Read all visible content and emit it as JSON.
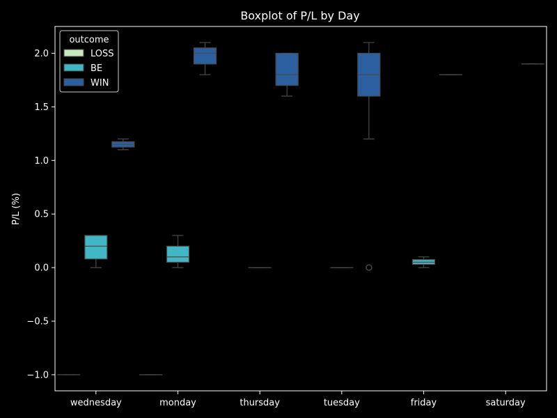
{
  "chart_data": {
    "type": "boxplot",
    "title": "Boxplot of P/L by Day",
    "xlabel": "",
    "ylabel": "P/L (%)",
    "ylim": [
      -1.15,
      2.25
    ],
    "yticks": [
      -1.0,
      -0.5,
      0.0,
      0.5,
      1.0,
      1.5,
      2.0
    ],
    "ytick_labels": [
      "−1.0",
      "−0.5",
      "0.0",
      "0.5",
      "1.0",
      "1.5",
      "2.0"
    ],
    "categories": [
      "wednesday",
      "monday",
      "thursday",
      "tuesday",
      "friday",
      "saturday"
    ],
    "legend": {
      "title": "outcome",
      "position": "top-left"
    },
    "series": [
      {
        "name": "LOSS",
        "color": "#c7e9c0",
        "boxes": [
          {
            "category": "wednesday",
            "min": -1.0,
            "q1": -1.0,
            "median": -1.0,
            "q3": -1.0,
            "max": -1.0,
            "outliers": []
          },
          {
            "category": "monday",
            "min": -1.0,
            "q1": -1.0,
            "median": -1.0,
            "q3": -1.0,
            "max": -1.0,
            "outliers": []
          }
        ]
      },
      {
        "name": "BE",
        "color": "#41b6c4",
        "boxes": [
          {
            "category": "wednesday",
            "min": 0.0,
            "q1": 0.08,
            "median": 0.2,
            "q3": 0.3,
            "max": 0.3,
            "outliers": []
          },
          {
            "category": "monday",
            "min": 0.0,
            "q1": 0.05,
            "median": 0.1,
            "q3": 0.2,
            "max": 0.3,
            "outliers": []
          },
          {
            "category": "thursday",
            "min": 0.0,
            "q1": 0.0,
            "median": 0.0,
            "q3": 0.0,
            "max": 0.0,
            "outliers": []
          },
          {
            "category": "tuesday",
            "min": 0.0,
            "q1": 0.0,
            "median": 0.0,
            "q3": 0.0,
            "max": 0.0,
            "outliers": [
              0.0
            ]
          },
          {
            "category": "friday",
            "min": 0.0,
            "q1": 0.03,
            "median": 0.05,
            "q3": 0.075,
            "max": 0.1,
            "outliers": []
          }
        ]
      },
      {
        "name": "WIN",
        "color": "#2c5fa0",
        "boxes": [
          {
            "category": "wednesday",
            "min": 1.1,
            "q1": 1.125,
            "median": 1.15,
            "q3": 1.175,
            "max": 1.2,
            "outliers": []
          },
          {
            "category": "monday",
            "min": 1.8,
            "q1": 1.9,
            "median": 2.0,
            "q3": 2.05,
            "max": 2.1,
            "outliers": []
          },
          {
            "category": "thursday",
            "min": 1.6,
            "q1": 1.7,
            "median": 1.8,
            "q3": 2.0,
            "max": 2.0,
            "outliers": []
          },
          {
            "category": "tuesday",
            "min": 1.2,
            "q1": 1.6,
            "median": 1.8,
            "q3": 2.0,
            "max": 2.1,
            "outliers": []
          },
          {
            "category": "friday",
            "min": 1.8,
            "q1": 1.8,
            "median": 1.8,
            "q3": 1.8,
            "max": 1.8,
            "outliers": []
          },
          {
            "category": "saturday",
            "min": 1.9,
            "q1": 1.9,
            "median": 1.9,
            "q3": 1.9,
            "max": 1.9,
            "outliers": []
          }
        ]
      }
    ],
    "colors": {
      "background": "#000000",
      "axes": "#ffffff",
      "whisker": "#4a4a4a"
    }
  }
}
